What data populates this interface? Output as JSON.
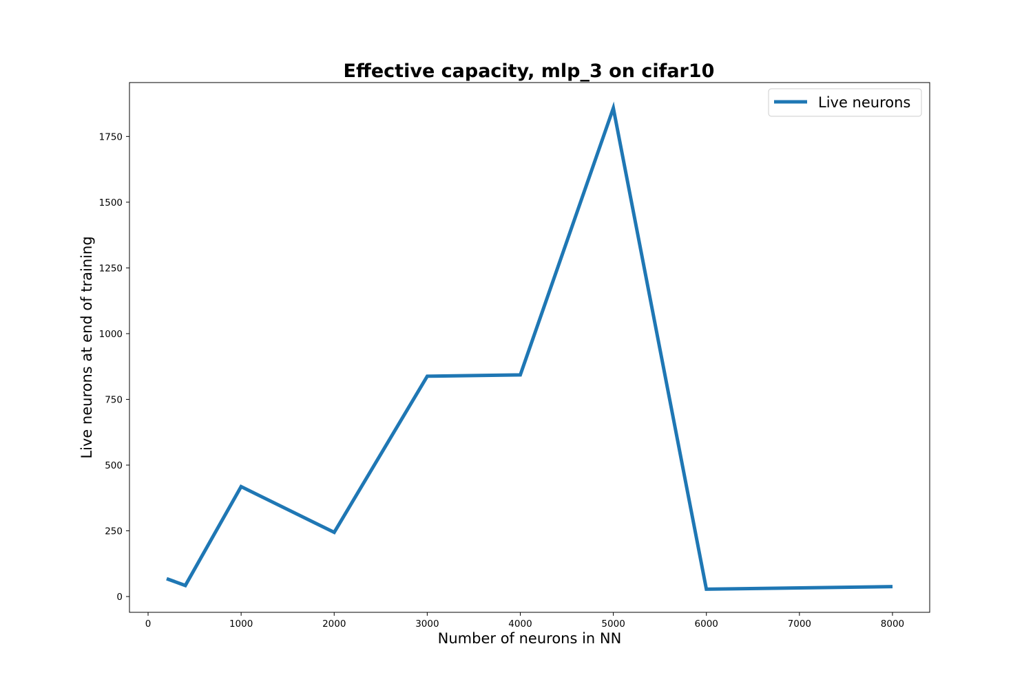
{
  "chart_data": {
    "type": "line",
    "title": "Effective capacity, mlp_3 on cifar10",
    "xlabel": "Number of neurons in NN",
    "ylabel": "Live neurons at end of training",
    "xlim": [
      -200,
      8400
    ],
    "ylim": [
      -60,
      1955
    ],
    "xticks": [
      0,
      1000,
      2000,
      3000,
      4000,
      5000,
      6000,
      7000,
      8000
    ],
    "xtick_labels": [
      "0",
      "1000",
      "2000",
      "3000",
      "4000",
      "5000",
      "6000",
      "7000",
      "8000"
    ],
    "yticks": [
      0,
      250,
      500,
      750,
      1000,
      1250,
      1500,
      1750
    ],
    "ytick_labels": [
      "0",
      "250",
      "500",
      "750",
      "1000",
      "1250",
      "1500",
      "1750"
    ],
    "grid": false,
    "legend_position": "top-right",
    "series": [
      {
        "name": "Live neurons",
        "color": "#1f77b4",
        "x": [
          200,
          400,
          1000,
          2000,
          3000,
          4000,
          5000,
          6000,
          8000
        ],
        "y": [
          68,
          42,
          418,
          244,
          838,
          843,
          1858,
          28,
          38
        ]
      }
    ]
  }
}
